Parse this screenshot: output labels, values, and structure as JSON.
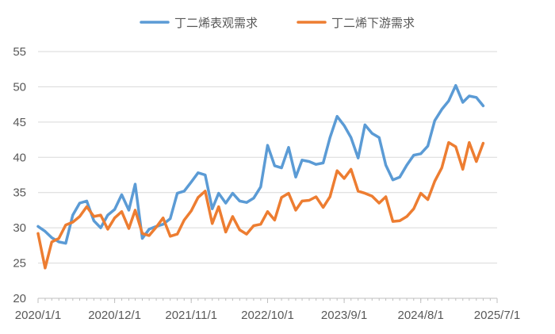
{
  "chart_data": {
    "type": "line",
    "title": "",
    "xlabel": "",
    "ylabel": "",
    "ylim": [
      20,
      55
    ],
    "y_ticks": [
      "20",
      "25",
      "30",
      "35",
      "40",
      "45",
      "50",
      "55"
    ],
    "x_tick_labels": [
      "2020/1/1",
      "2020/12/1",
      "2021/11/1",
      "2022/10/1",
      "2023/9/1",
      "2024/8/1",
      "2025/7/1"
    ],
    "x_tick_dates": [
      "2020-01-01",
      "2020-12-01",
      "2021-11-01",
      "2022-10-01",
      "2023-09-01",
      "2024-08-01",
      "2025-07-01"
    ],
    "x_range": [
      "2020-01-01",
      "2025-07-01"
    ],
    "grid": "horizontal",
    "legend_position": "top",
    "series": [
      {
        "name": "丁二烯表观需求",
        "color": "#5B9BD5",
        "points": [
          [
            "2020-01-01",
            30.2
          ],
          [
            "2020-02-01",
            29.5
          ],
          [
            "2020-03-01",
            28.6
          ],
          [
            "2020-04-01",
            28.0
          ],
          [
            "2020-05-01",
            27.8
          ],
          [
            "2020-06-01",
            31.8
          ],
          [
            "2020-07-01",
            33.5
          ],
          [
            "2020-08-01",
            33.8
          ],
          [
            "2020-09-01",
            31.0
          ],
          [
            "2020-10-01",
            30.0
          ],
          [
            "2020-11-01",
            31.8
          ],
          [
            "2020-12-01",
            32.6
          ],
          [
            "2021-01-01",
            34.7
          ],
          [
            "2021-02-01",
            32.5
          ],
          [
            "2021-03-01",
            36.2
          ],
          [
            "2021-04-01",
            28.5
          ],
          [
            "2021-05-01",
            29.8
          ],
          [
            "2021-06-01",
            30.2
          ],
          [
            "2021-07-01",
            30.5
          ],
          [
            "2021-08-01",
            31.3
          ],
          [
            "2021-09-01",
            34.9
          ],
          [
            "2021-10-01",
            35.2
          ],
          [
            "2021-11-01",
            36.5
          ],
          [
            "2021-12-01",
            37.8
          ],
          [
            "2022-01-01",
            37.5
          ],
          [
            "2022-02-01",
            32.7
          ],
          [
            "2022-03-01",
            34.9
          ],
          [
            "2022-04-01",
            33.5
          ],
          [
            "2022-05-01",
            34.9
          ],
          [
            "2022-06-01",
            33.8
          ],
          [
            "2022-07-01",
            33.6
          ],
          [
            "2022-08-01",
            34.2
          ],
          [
            "2022-09-01",
            35.8
          ],
          [
            "2022-10-01",
            41.7
          ],
          [
            "2022-11-01",
            38.8
          ],
          [
            "2022-12-01",
            38.5
          ],
          [
            "2023-01-01",
            41.4
          ],
          [
            "2023-02-01",
            37.2
          ],
          [
            "2023-03-01",
            39.6
          ],
          [
            "2023-04-01",
            39.4
          ],
          [
            "2023-05-01",
            39.0
          ],
          [
            "2023-06-01",
            39.2
          ],
          [
            "2023-07-01",
            42.8
          ],
          [
            "2023-08-01",
            45.8
          ],
          [
            "2023-09-01",
            44.5
          ],
          [
            "2023-10-01",
            42.8
          ],
          [
            "2023-11-01",
            39.9
          ],
          [
            "2023-12-01",
            44.6
          ],
          [
            "2024-01-01",
            43.4
          ],
          [
            "2024-02-01",
            42.8
          ],
          [
            "2024-03-01",
            38.9
          ],
          [
            "2024-04-01",
            36.8
          ],
          [
            "2024-05-01",
            37.2
          ],
          [
            "2024-06-01",
            38.9
          ],
          [
            "2024-07-01",
            40.3
          ],
          [
            "2024-08-01",
            40.5
          ],
          [
            "2024-09-01",
            41.6
          ],
          [
            "2024-10-01",
            45.2
          ],
          [
            "2024-11-01",
            46.8
          ],
          [
            "2024-12-01",
            48.0
          ],
          [
            "2025-01-01",
            50.2
          ],
          [
            "2025-02-01",
            47.8
          ],
          [
            "2025-03-01",
            48.7
          ],
          [
            "2025-04-01",
            48.5
          ],
          [
            "2025-05-01",
            47.3
          ]
        ]
      },
      {
        "name": "丁二烯下游需求",
        "color": "#ED7D31",
        "points": [
          [
            "2020-01-01",
            29.2
          ],
          [
            "2020-02-01",
            24.3
          ],
          [
            "2020-03-01",
            28.0
          ],
          [
            "2020-04-01",
            28.5
          ],
          [
            "2020-05-01",
            30.4
          ],
          [
            "2020-06-01",
            30.8
          ],
          [
            "2020-07-01",
            31.6
          ],
          [
            "2020-08-01",
            33.0
          ],
          [
            "2020-09-01",
            31.6
          ],
          [
            "2020-10-01",
            31.8
          ],
          [
            "2020-11-01",
            29.8
          ],
          [
            "2020-12-01",
            31.4
          ],
          [
            "2021-01-01",
            32.3
          ],
          [
            "2021-02-01",
            29.9
          ],
          [
            "2021-03-01",
            32.5
          ],
          [
            "2021-04-01",
            29.2
          ],
          [
            "2021-05-01",
            28.9
          ],
          [
            "2021-06-01",
            30.1
          ],
          [
            "2021-07-01",
            31.4
          ],
          [
            "2021-08-01",
            28.8
          ],
          [
            "2021-09-01",
            29.1
          ],
          [
            "2021-10-01",
            31.1
          ],
          [
            "2021-11-01",
            32.4
          ],
          [
            "2021-12-01",
            34.3
          ],
          [
            "2022-01-01",
            35.2
          ],
          [
            "2022-02-01",
            30.6
          ],
          [
            "2022-03-01",
            33.0
          ],
          [
            "2022-04-01",
            29.4
          ],
          [
            "2022-05-01",
            31.6
          ],
          [
            "2022-06-01",
            29.7
          ],
          [
            "2022-07-01",
            29.1
          ],
          [
            "2022-08-01",
            30.3
          ],
          [
            "2022-09-01",
            30.5
          ],
          [
            "2022-10-01",
            32.3
          ],
          [
            "2022-11-01",
            31.1
          ],
          [
            "2022-12-01",
            34.3
          ],
          [
            "2023-01-01",
            34.9
          ],
          [
            "2023-02-01",
            32.5
          ],
          [
            "2023-03-01",
            33.8
          ],
          [
            "2023-04-01",
            33.9
          ],
          [
            "2023-05-01",
            34.4
          ],
          [
            "2023-06-01",
            32.9
          ],
          [
            "2023-07-01",
            34.4
          ],
          [
            "2023-08-01",
            38.1
          ],
          [
            "2023-09-01",
            37.0
          ],
          [
            "2023-10-01",
            38.3
          ],
          [
            "2023-11-01",
            35.2
          ],
          [
            "2023-12-01",
            34.9
          ],
          [
            "2024-01-01",
            34.5
          ],
          [
            "2024-02-01",
            33.5
          ],
          [
            "2024-03-01",
            34.4
          ],
          [
            "2024-04-01",
            30.9
          ],
          [
            "2024-05-01",
            31.0
          ],
          [
            "2024-06-01",
            31.6
          ],
          [
            "2024-07-01",
            32.7
          ],
          [
            "2024-08-01",
            34.9
          ],
          [
            "2024-09-01",
            34.0
          ],
          [
            "2024-10-01",
            36.6
          ],
          [
            "2024-11-01",
            38.5
          ],
          [
            "2024-12-01",
            42.1
          ],
          [
            "2025-01-01",
            41.5
          ],
          [
            "2025-02-01",
            38.3
          ],
          [
            "2025-03-01",
            42.1
          ],
          [
            "2025-04-01",
            39.4
          ],
          [
            "2025-05-01",
            42.0
          ]
        ]
      }
    ]
  }
}
